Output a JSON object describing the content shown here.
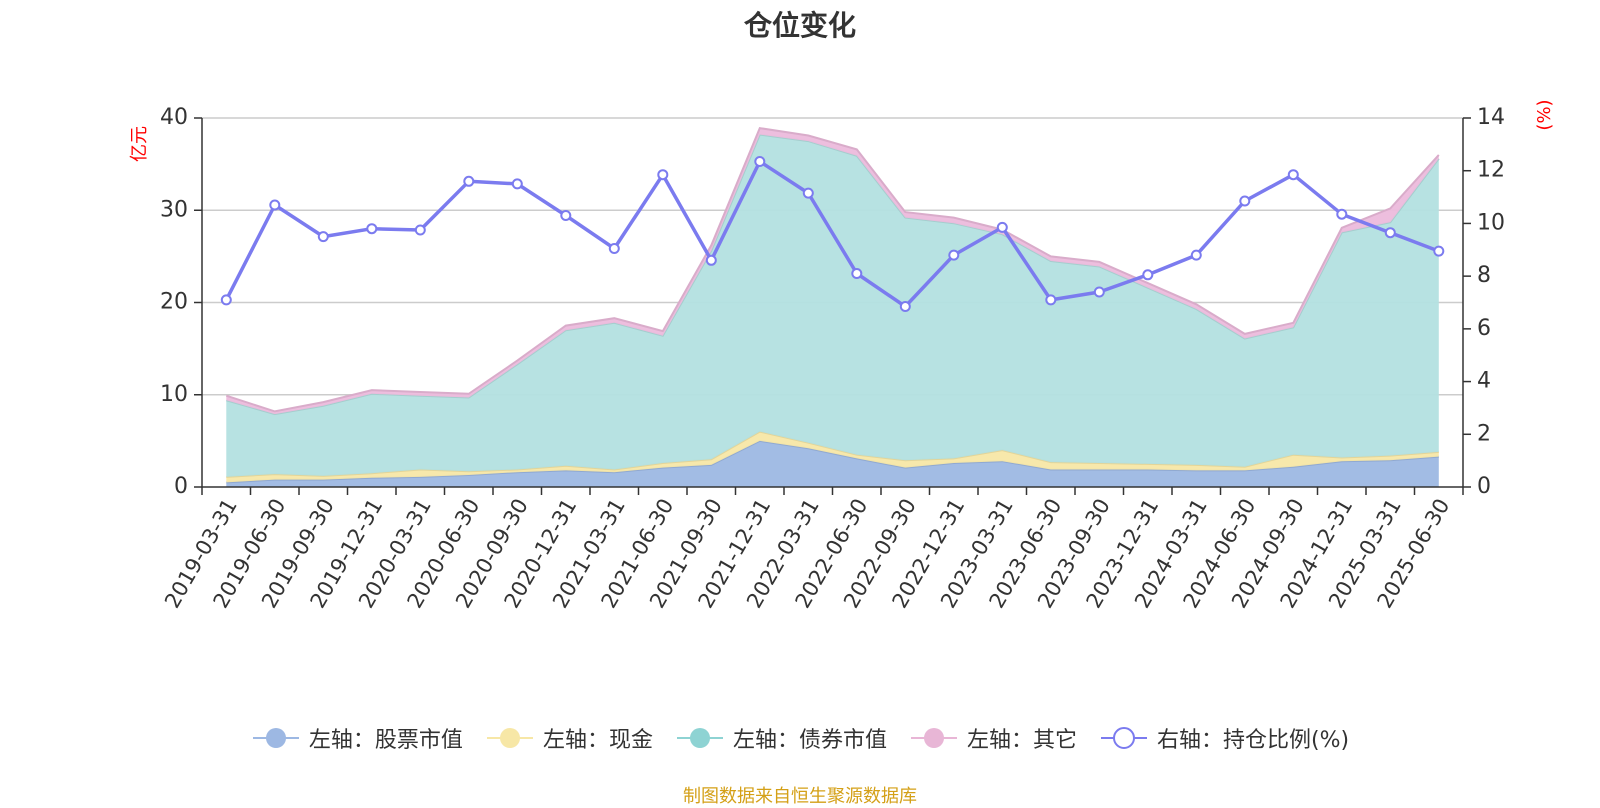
{
  "title": "仓位变化",
  "source_note": "制图数据来自恒生聚源数据库",
  "chart_data": {
    "type": "area",
    "title": "仓位变化",
    "x": [
      "2019-03-31",
      "2019-06-30",
      "2019-09-30",
      "2019-12-31",
      "2020-03-31",
      "2020-06-30",
      "2020-09-30",
      "2020-12-31",
      "2021-03-31",
      "2021-06-30",
      "2021-09-30",
      "2021-12-31",
      "2022-03-31",
      "2022-06-30",
      "2022-09-30",
      "2022-12-31",
      "2023-03-31",
      "2023-06-30",
      "2023-09-30",
      "2023-12-31",
      "2024-03-31",
      "2024-06-30",
      "2024-09-30",
      "2024-12-31",
      "2025-03-31",
      "2025-06-30"
    ],
    "left_axis": {
      "label": "亿元",
      "ylim": [
        0,
        40
      ],
      "ticks": [
        0,
        10,
        20,
        30,
        40
      ]
    },
    "right_axis": {
      "label": "(%)",
      "ylim": [
        0,
        14
      ],
      "ticks": [
        0,
        2,
        4,
        6,
        8,
        10,
        12,
        14
      ]
    },
    "grid": true,
    "legend_position": "bottom",
    "stacked_series": [
      {
        "name": "左轴：股票市值",
        "color": "#9db8e3",
        "values": [
          0.5,
          0.8,
          0.8,
          1.0,
          1.1,
          1.3,
          1.6,
          1.8,
          1.6,
          2.1,
          2.4,
          5.0,
          4.2,
          3.1,
          2.1,
          2.6,
          2.8,
          1.9,
          1.9,
          1.9,
          1.8,
          1.8,
          2.2,
          2.8,
          2.9,
          3.3
        ]
      },
      {
        "name": "左轴：现金",
        "color": "#f7e7a6",
        "values": [
          0.6,
          0.6,
          0.4,
          0.5,
          0.8,
          0.4,
          0.3,
          0.5,
          0.3,
          0.5,
          0.6,
          1.0,
          0.6,
          0.4,
          0.8,
          0.5,
          1.2,
          0.8,
          0.7,
          0.6,
          0.6,
          0.4,
          1.3,
          0.4,
          0.5,
          0.5
        ]
      },
      {
        "name": "左轴：债券市值",
        "color": "#b3e0e0",
        "values": [
          8.3,
          6.5,
          7.6,
          8.6,
          8.0,
          8.0,
          11.4,
          14.7,
          15.9,
          13.8,
          22.6,
          32.2,
          32.7,
          32.4,
          26.3,
          25.5,
          23.4,
          21.8,
          21.3,
          19.1,
          16.9,
          13.9,
          13.8,
          24.4,
          25.3,
          31.8
        ]
      },
      {
        "name": "左轴：其它",
        "color": "#ecbbdc",
        "values": [
          0.5,
          0.3,
          0.4,
          0.4,
          0.4,
          0.4,
          0.4,
          0.5,
          0.5,
          0.5,
          0.6,
          0.7,
          0.6,
          0.7,
          0.6,
          0.6,
          0.5,
          0.5,
          0.5,
          0.5,
          0.5,
          0.5,
          0.5,
          0.5,
          1.5,
          0.4
        ]
      }
    ],
    "line_series": {
      "name": "右轴：持仓比例(%)",
      "color": "#7b7bef",
      "values": [
        7.1,
        10.7,
        9.5,
        9.8,
        9.75,
        11.6,
        11.5,
        10.3,
        9.05,
        11.85,
        8.6,
        12.35,
        11.15,
        8.1,
        6.85,
        8.8,
        9.85,
        7.1,
        7.4,
        8.05,
        8.8,
        10.85,
        11.85,
        10.35,
        9.65,
        8.95
      ]
    }
  },
  "legend": [
    {
      "label": "左轴：股票市值",
      "icon": "filled-circle",
      "color": "#9db8e3"
    },
    {
      "label": "左轴：现金",
      "icon": "filled-circle",
      "color": "#f7e7a6"
    },
    {
      "label": "左轴：债券市值",
      "icon": "filled-circle",
      "color": "#8ed3d3"
    },
    {
      "label": "左轴：其它",
      "icon": "filled-circle",
      "color": "#e8b6d6"
    },
    {
      "label": "右轴：持仓比例(%)",
      "icon": "hollow-circle",
      "color": "#7b7bef"
    }
  ],
  "colors": {
    "axis_label": "#ff0000",
    "axis": "#333333",
    "grid": "#cccccc",
    "text": "#333333"
  }
}
